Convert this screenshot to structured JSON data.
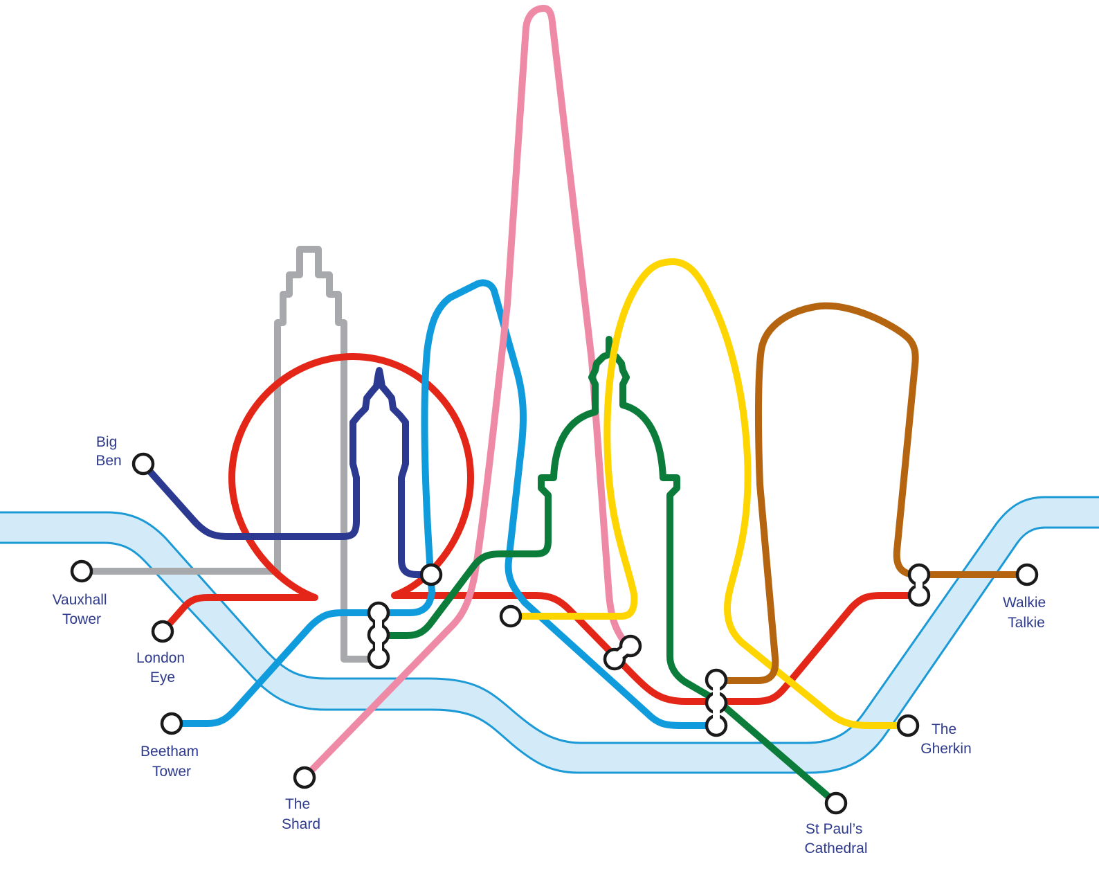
{
  "colors": {
    "background": "#ffffff",
    "river_fill": "#d3eaf9",
    "river_edge": "#1b9ad6",
    "label_text": "#2e3a8c",
    "station_stroke": "#1a1a1a",
    "lines": {
      "big_ben": "#2b3990",
      "vauxhall_tower": "#a7a9ac",
      "london_eye": "#e42618",
      "beetham_tower": "#0f9bdc",
      "the_shard": "#ef8aa6",
      "st_pauls_cathedral": "#0b7c3a",
      "the_gherkin": "#ffd500",
      "walkie_talkie": "#b5650f"
    }
  },
  "labels": {
    "big_ben": [
      "Big",
      "Ben"
    ],
    "vauxhall_tower": [
      "Vauxhall",
      "Tower"
    ],
    "london_eye": [
      "London",
      "Eye"
    ],
    "beetham_tower": [
      "Beetham",
      "Tower"
    ],
    "the_shard": [
      "The",
      "Shard"
    ],
    "st_pauls_cathedral": [
      "St Paul’s",
      "Cathedral"
    ],
    "the_gherkin": [
      "The",
      "Gherkin"
    ],
    "walkie_talkie": [
      "Walkie",
      "Talkie"
    ]
  }
}
